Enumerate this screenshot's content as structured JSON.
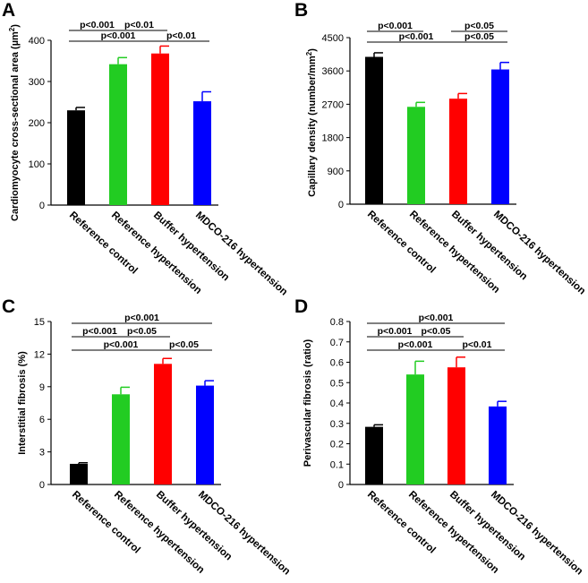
{
  "chart_data": [
    {
      "panel": "A",
      "type": "bar",
      "title": "",
      "ylabel": "Cardiomyocyte cross-sectional area (µm²)",
      "ylabel_main": "Cardiomyocyte cross-sectional area (µm",
      "ylabel_sup": "2",
      "ylabel_end": ")",
      "ylim": [
        0,
        400
      ],
      "yticks": [
        0,
        100,
        200,
        300,
        400
      ],
      "categories": [
        "Reference control",
        "Reference hypertension",
        "Buffer hypertension",
        "MDCO-216 hypertension"
      ],
      "colors": [
        "#000000",
        "#22cc22",
        "#ff0000",
        "#0000ff"
      ],
      "values": [
        230,
        342,
        368,
        252
      ],
      "errors": [
        7,
        16,
        18,
        23
      ],
      "significance": [
        {
          "from": 0,
          "to": 1,
          "label": "p<0.001",
          "level": 1
        },
        {
          "from": 1,
          "to": 2,
          "label": "p<0.01",
          "level": 1
        },
        {
          "from": 0,
          "to": 2,
          "label": "p<0.001",
          "level": 0
        },
        {
          "from": 2,
          "to": 3,
          "label": "p<0.01",
          "level": 0
        }
      ]
    },
    {
      "panel": "B",
      "type": "bar",
      "title": "",
      "ylabel": "Capillary density (number/mm²)",
      "ylabel_main": "Capillary density (number/mm",
      "ylabel_sup": "2",
      "ylabel_end": ")",
      "ylim": [
        0,
        4500
      ],
      "yticks": [
        0,
        900,
        1800,
        2700,
        3600,
        4500
      ],
      "categories": [
        "Reference control",
        "Reference hypertension",
        "Buffer hypertension",
        "MDCO-216 hypertension"
      ],
      "colors": [
        "#000000",
        "#22cc22",
        "#ff0000",
        "#0000ff"
      ],
      "values": [
        3980,
        2630,
        2850,
        3640
      ],
      "errors": [
        110,
        120,
        140,
        190
      ],
      "significance": [
        {
          "from": 0,
          "to": 1,
          "label": "p<0.001",
          "level": 1
        },
        {
          "from": 2,
          "to": 3,
          "label": "p<0.05",
          "level": 1
        },
        {
          "from": 0,
          "to": 2,
          "label": "p<0.001",
          "level": 0
        },
        {
          "from": 2,
          "to": 3,
          "label": "p<0.05",
          "level": 0
        }
      ]
    },
    {
      "panel": "C",
      "type": "bar",
      "title": "",
      "ylabel": "Interstitial fibrosis (%)",
      "ylabel_main": "Interstitial fibrosis (%)",
      "ylabel_sup": "",
      "ylabel_end": "",
      "ylim": [
        0,
        15
      ],
      "yticks": [
        0,
        3,
        6,
        9,
        12,
        15
      ],
      "categories": [
        "Reference control",
        "Reference hypertension",
        "Buffer hypertension",
        "MDCO-216 hypertension"
      ],
      "colors": [
        "#000000",
        "#22cc22",
        "#ff0000",
        "#0000ff"
      ],
      "values": [
        1.9,
        8.3,
        11.1,
        9.1
      ],
      "errors": [
        0.1,
        0.65,
        0.5,
        0.45
      ],
      "significance": [
        {
          "from": 0,
          "to": 3,
          "label": "p<0.001",
          "level": 2
        },
        {
          "from": 0,
          "to": 1,
          "label": "p<0.001",
          "level": 1
        },
        {
          "from": 1,
          "to": 2,
          "label": "p<0.05",
          "level": 1
        },
        {
          "from": 0,
          "to": 2,
          "label": "p<0.001",
          "level": 0
        },
        {
          "from": 2,
          "to": 3,
          "label": "p<0.05",
          "level": 0
        }
      ]
    },
    {
      "panel": "D",
      "type": "bar",
      "title": "",
      "ylabel": "Perivascular fibrosis (ratio)",
      "ylabel_main": "Perivascular fibrosis (ratio)",
      "ylabel_sup": "",
      "ylabel_end": "",
      "ylim": [
        0,
        0.8
      ],
      "yticks": [
        0,
        0.1,
        0.2,
        0.3,
        0.4,
        0.5,
        0.6,
        0.7,
        0.8
      ],
      "categories": [
        "Reference control",
        "Reference hypertension",
        "Buffer hypertension",
        "MDCO-216 hypertension"
      ],
      "colors": [
        "#000000",
        "#22cc22",
        "#ff0000",
        "#0000ff"
      ],
      "values": [
        0.283,
        0.54,
        0.575,
        0.383
      ],
      "errors": [
        0.01,
        0.065,
        0.05,
        0.025
      ],
      "significance": [
        {
          "from": 0,
          "to": 3,
          "label": "p<0.001",
          "level": 2
        },
        {
          "from": 0,
          "to": 1,
          "label": "p<0.001",
          "level": 1
        },
        {
          "from": 1,
          "to": 2,
          "label": "p<0.05",
          "level": 1
        },
        {
          "from": 0,
          "to": 2,
          "label": "p<0.001",
          "level": 0
        },
        {
          "from": 2,
          "to": 3,
          "label": "p<0.01",
          "level": 0
        }
      ]
    }
  ]
}
